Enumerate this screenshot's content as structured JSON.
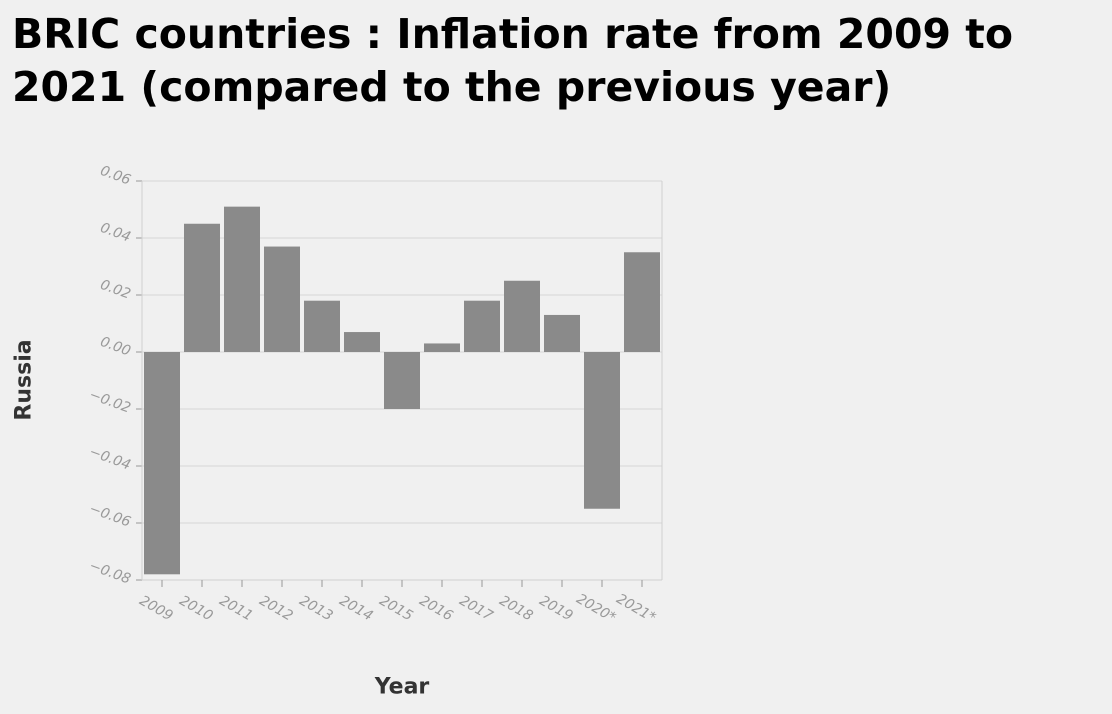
{
  "chart_data": {
    "type": "bar",
    "title": "BRIC countries : Inflation rate from 2009 to 2021 (compared to the previous year)",
    "xlabel": "Year",
    "ylabel": "Russia",
    "categories": [
      "2009",
      "2010",
      "2011",
      "2012",
      "2013",
      "2014",
      "2015",
      "2016",
      "2017",
      "2018",
      "2019",
      "2020*",
      "2021*"
    ],
    "values": [
      -0.078,
      0.045,
      0.051,
      0.037,
      0.018,
      0.007,
      -0.02,
      0.003,
      0.018,
      0.025,
      0.013,
      -0.055,
      0.035
    ],
    "ylim": [
      -0.08,
      0.06
    ],
    "yticks": [
      "0.06",
      "0.04",
      "0.02",
      "0.00",
      "−0.02",
      "−0.04",
      "−0.06",
      "−0.08"
    ],
    "grid": true,
    "bar_color": "#8a8a8a",
    "grid_color": "#d6d6d6"
  }
}
